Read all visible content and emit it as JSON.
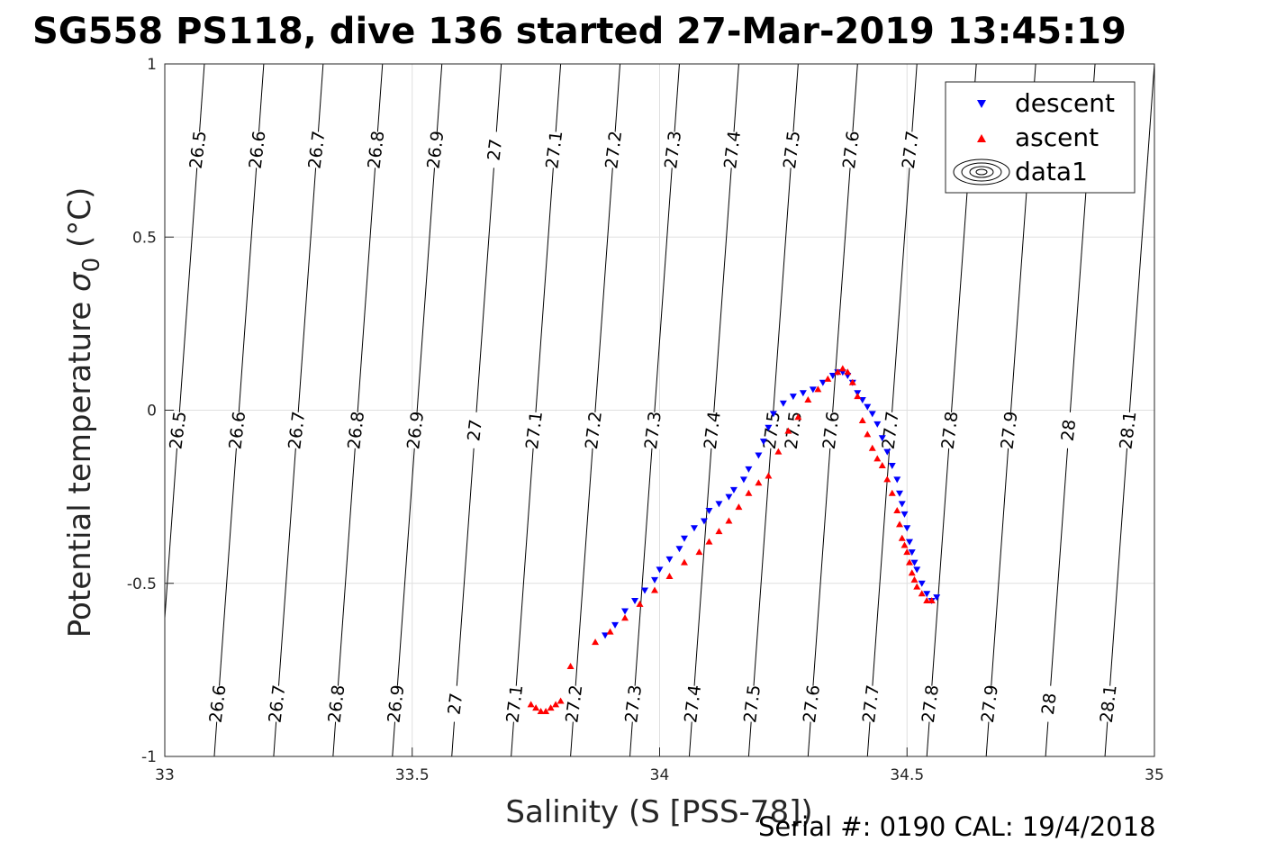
{
  "chart_data": {
    "type": "scatter",
    "title": "SG558 PS118, dive 136 started 27-Mar-2019 13:45:19",
    "xlabel": "Salinity (S [PSS-78])",
    "ylabel_main": "Potential temperature ",
    "ylabel_symbol": "σ",
    "ylabel_sub": "0",
    "ylabel_unit": " (°C)",
    "footer": "Serial #: 0190  CAL: 19/4/2018",
    "xlim": [
      33,
      35
    ],
    "ylim": [
      -1,
      1
    ],
    "x_ticks": [
      33,
      33.5,
      34,
      34.5,
      35
    ],
    "x_tick_labels": [
      "33",
      "33.5",
      "34",
      "34.5",
      "35"
    ],
    "y_ticks": [
      -1,
      -0.5,
      0,
      0.5,
      1
    ],
    "y_tick_labels": [
      "-1",
      "-0.5",
      "0",
      "0.5",
      "1"
    ],
    "grid": true,
    "legend_position": "top-right",
    "legend": [
      {
        "label": "descent",
        "marker": "triangle-down",
        "color": "#0000ff"
      },
      {
        "label": "ascent",
        "marker": "triangle-up",
        "color": "#ff0000"
      },
      {
        "label": "data1",
        "marker": "contour",
        "color": "#000000"
      }
    ],
    "contours": {
      "levels": [
        "26.5",
        "26.6",
        "26.7",
        "26.8",
        "26.9",
        "27",
        "27.1",
        "27.2",
        "27.3",
        "27.4",
        "27.5",
        "27.6",
        "27.7",
        "27.8",
        "27.9",
        "28",
        "28.1"
      ],
      "salinity_at_top": [
        33.08,
        33.2,
        33.32,
        33.44,
        33.56,
        33.68,
        33.8,
        33.92,
        34.04,
        34.16,
        34.28,
        34.4,
        34.52,
        34.64,
        34.76,
        34.88,
        35.0
      ],
      "salinity_at_bottom": [
        32.98,
        33.1,
        33.22,
        33.34,
        33.46,
        33.58,
        33.7,
        33.82,
        33.94,
        34.06,
        34.18,
        34.3,
        34.42,
        34.54,
        34.66,
        34.78,
        34.9
      ],
      "labels_top_row": [
        "26.5",
        "26.6",
        "26.7",
        "26.8",
        "26.9",
        "27",
        "27.1",
        "27.2",
        "27.3",
        "27.4",
        "27.5",
        "27.6",
        "27.7"
      ],
      "labels_middle_row": [
        "26.5",
        "26.6",
        "26.7",
        "26.8",
        "26.9",
        "27",
        "27.1",
        "27.2",
        "27.3",
        "27.4",
        "27.5",
        "27.5",
        "27.6",
        "27.7",
        "27.8",
        "27.9",
        "28",
        "28.1"
      ],
      "labels_bottom_row": [
        "26.6",
        "26.7",
        "26.8",
        "26.9",
        "27",
        "27.1",
        "27.2",
        "27.3",
        "27.4",
        "27.5",
        "27.6",
        "27.7",
        "27.8",
        "27.9",
        "28",
        "28.1"
      ]
    },
    "series": [
      {
        "name": "descent",
        "color": "#0000ff",
        "marker": "triangle-down",
        "x": [
          33.89,
          33.91,
          33.93,
          33.95,
          33.97,
          33.99,
          34.0,
          34.02,
          34.04,
          34.05,
          34.07,
          34.09,
          34.1,
          34.12,
          34.14,
          34.15,
          34.17,
          34.18,
          34.2,
          34.21,
          34.22,
          34.23,
          34.25,
          34.27,
          34.29,
          34.31,
          34.33,
          34.35,
          34.36,
          34.37,
          34.38,
          34.39,
          34.4,
          34.41,
          34.42,
          34.43,
          34.44,
          34.45,
          34.46,
          34.47,
          34.48,
          34.485,
          34.49,
          34.495,
          34.5,
          34.505,
          34.51,
          34.515,
          34.52,
          34.53,
          34.54,
          34.55,
          34.56
        ],
        "y": [
          -0.65,
          -0.62,
          -0.58,
          -0.55,
          -0.52,
          -0.49,
          -0.46,
          -0.43,
          -0.4,
          -0.37,
          -0.34,
          -0.32,
          -0.29,
          -0.27,
          -0.25,
          -0.23,
          -0.2,
          -0.17,
          -0.13,
          -0.09,
          -0.05,
          -0.01,
          0.02,
          0.04,
          0.05,
          0.06,
          0.08,
          0.1,
          0.11,
          0.11,
          0.1,
          0.08,
          0.05,
          0.03,
          0.01,
          -0.01,
          -0.04,
          -0.08,
          -0.12,
          -0.16,
          -0.2,
          -0.24,
          -0.27,
          -0.3,
          -0.34,
          -0.38,
          -0.41,
          -0.44,
          -0.46,
          -0.5,
          -0.53,
          -0.55,
          -0.54
        ]
      },
      {
        "name": "ascent",
        "color": "#ff0000",
        "marker": "triangle-up",
        "x": [
          33.74,
          33.75,
          33.76,
          33.77,
          33.78,
          33.79,
          33.8,
          33.82,
          33.87,
          33.9,
          33.93,
          33.96,
          33.99,
          34.02,
          34.05,
          34.08,
          34.1,
          34.12,
          34.14,
          34.16,
          34.18,
          34.2,
          34.22,
          34.24,
          34.26,
          34.28,
          34.3,
          34.32,
          34.34,
          34.36,
          34.37,
          34.38,
          34.39,
          34.4,
          34.41,
          34.42,
          34.43,
          34.44,
          34.45,
          34.46,
          34.47,
          34.48,
          34.485,
          34.49,
          34.495,
          34.5,
          34.505,
          34.51,
          34.515,
          34.52,
          34.53,
          34.54,
          34.55
        ],
        "y": [
          -0.85,
          -0.86,
          -0.87,
          -0.87,
          -0.86,
          -0.85,
          -0.84,
          -0.74,
          -0.67,
          -0.64,
          -0.6,
          -0.56,
          -0.52,
          -0.48,
          -0.44,
          -0.41,
          -0.38,
          -0.35,
          -0.32,
          -0.28,
          -0.24,
          -0.21,
          -0.19,
          -0.12,
          -0.06,
          -0.02,
          0.03,
          0.06,
          0.09,
          0.11,
          0.12,
          0.11,
          0.08,
          0.04,
          -0.03,
          -0.07,
          -0.11,
          -0.14,
          -0.16,
          -0.2,
          -0.24,
          -0.29,
          -0.33,
          -0.37,
          -0.39,
          -0.41,
          -0.44,
          -0.47,
          -0.49,
          -0.51,
          -0.53,
          -0.55,
          -0.55
        ]
      }
    ]
  }
}
